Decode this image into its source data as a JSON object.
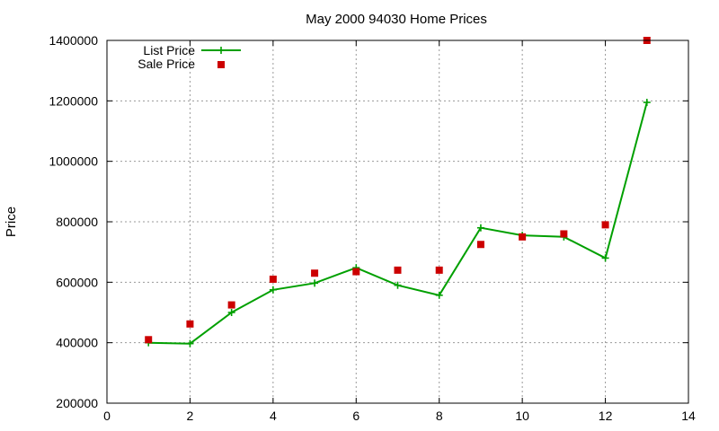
{
  "chart_data": {
    "type": "line",
    "title": "May 2000 94030 Home Prices",
    "xlabel": "",
    "ylabel": "Price",
    "xlim": [
      0,
      14
    ],
    "ylim": [
      200000,
      1400000
    ],
    "xticks": [
      0,
      2,
      4,
      6,
      8,
      10,
      12,
      14
    ],
    "yticks": [
      200000,
      400000,
      600000,
      800000,
      1000000,
      1200000,
      1400000
    ],
    "grid": true,
    "legend_position": "top-left",
    "series": [
      {
        "name": "List Price",
        "style": "line-with-crosses",
        "color": "#00a000",
        "x": [
          1,
          2,
          3,
          4,
          5,
          6,
          7,
          8,
          9,
          10,
          11,
          12,
          13
        ],
        "y": [
          400000,
          397000,
          500000,
          575000,
          597000,
          648000,
          590000,
          557000,
          780000,
          755000,
          750000,
          680000,
          1195000
        ]
      },
      {
        "name": "Sale Price",
        "style": "squares",
        "color": "#cc0000",
        "x": [
          1,
          2,
          3,
          4,
          5,
          6,
          7,
          8,
          9,
          10,
          11,
          12,
          13
        ],
        "y": [
          410000,
          462000,
          525000,
          610000,
          630000,
          635000,
          640000,
          640000,
          725000,
          750000,
          760000,
          790000,
          1400000
        ]
      }
    ]
  }
}
